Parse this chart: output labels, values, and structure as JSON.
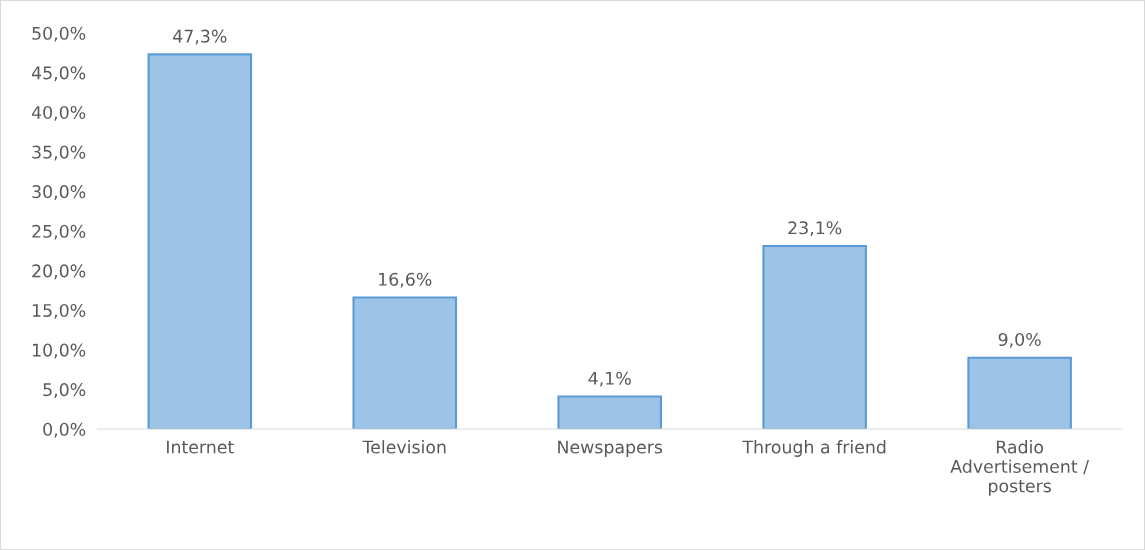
{
  "chart_data": {
    "type": "bar",
    "categories": [
      "Internet",
      "Television",
      "Newspapers",
      "Through a friend",
      "Radio\nAdvertisement /\nposters"
    ],
    "values": [
      47.3,
      16.6,
      4.1,
      23.1,
      9.0
    ],
    "value_labels": [
      "47,3%",
      "16,6%",
      "4,1%",
      "23,1%",
      "9,0%"
    ],
    "color": "#9dc3e6",
    "ylim": [
      0,
      50
    ],
    "yticks": [
      {
        "value": 0,
        "label": "0,0%"
      },
      {
        "value": 5,
        "label": "5,0%"
      },
      {
        "value": 10,
        "label": "10,0%"
      },
      {
        "value": 15,
        "label": "15,0%"
      },
      {
        "value": 20,
        "label": "20,0%"
      },
      {
        "value": 25,
        "label": "25,0%"
      },
      {
        "value": 30,
        "label": "30,0%"
      },
      {
        "value": 35,
        "label": "35,0%"
      },
      {
        "value": 40,
        "label": "40,0%"
      },
      {
        "value": 45,
        "label": "45,0%"
      },
      {
        "value": 50,
        "label": "50,0%"
      }
    ],
    "grid": false,
    "legend": false
  }
}
